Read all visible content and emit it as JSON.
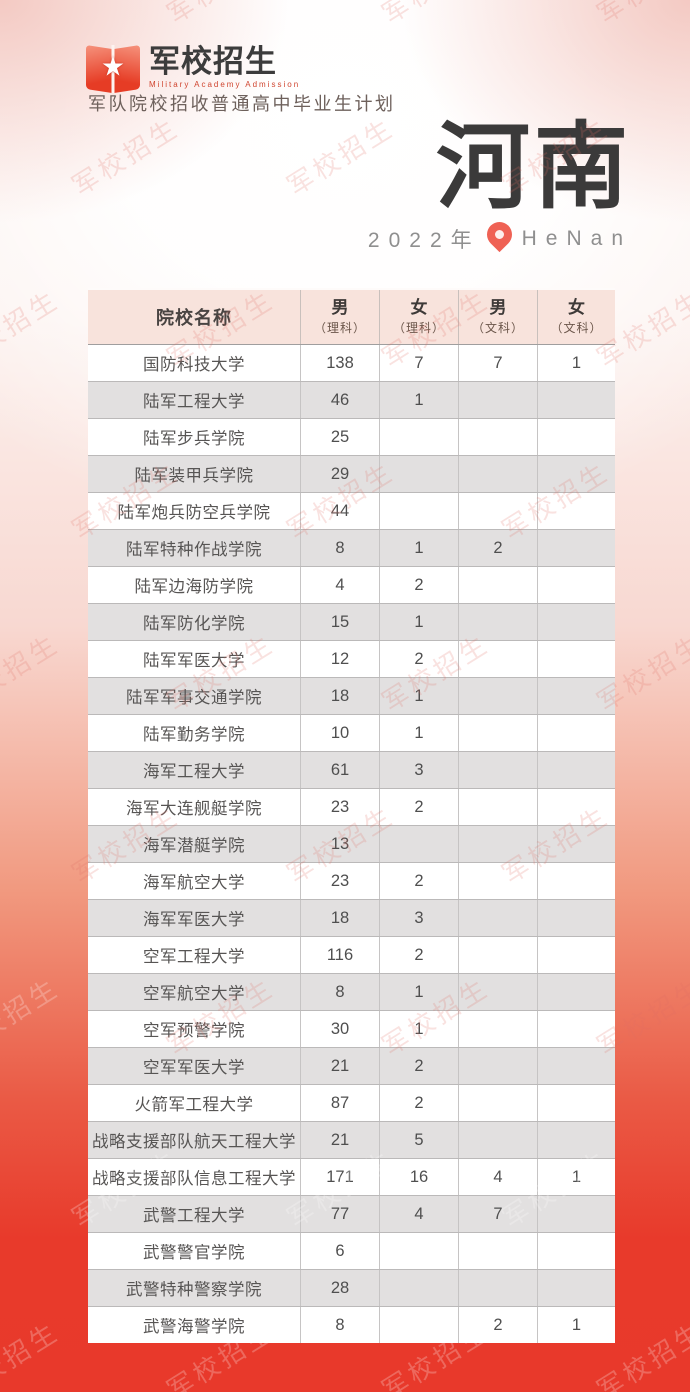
{
  "logo": {
    "title": "军校招生",
    "subtitle": "Military Academy Admission"
  },
  "tagline": "军队院校招收普通高中毕业生计划",
  "title": {
    "province": "河南",
    "year": "2022年",
    "pinyin": "HeNan"
  },
  "watermark_text": "军校招生",
  "colors": {
    "primary_red": "#e8392b",
    "header_pink": "#f8e3dc",
    "row_gray": "#e2e0e0",
    "row_white": "#ffffff",
    "pin_red": "#ef6154"
  },
  "table": {
    "header": {
      "name_label": "院校名称",
      "columns": [
        {
          "label": "男",
          "sub": "（理科）"
        },
        {
          "label": "女",
          "sub": "（理科）"
        },
        {
          "label": "男",
          "sub": "（文科）"
        },
        {
          "label": "女",
          "sub": "（文科）"
        }
      ]
    },
    "rows": [
      {
        "name": "国防科技大学",
        "values": [
          "138",
          "7",
          "7",
          "1"
        ]
      },
      {
        "name": "陆军工程大学",
        "values": [
          "46",
          "1",
          "",
          ""
        ]
      },
      {
        "name": "陆军步兵学院",
        "values": [
          "25",
          "",
          "",
          ""
        ]
      },
      {
        "name": "陆军装甲兵学院",
        "values": [
          "29",
          "",
          "",
          ""
        ]
      },
      {
        "name": "陆军炮兵防空兵学院",
        "values": [
          "44",
          "",
          "",
          ""
        ]
      },
      {
        "name": "陆军特种作战学院",
        "values": [
          "8",
          "1",
          "2",
          ""
        ]
      },
      {
        "name": "陆军边海防学院",
        "values": [
          "4",
          "2",
          "",
          ""
        ]
      },
      {
        "name": "陆军防化学院",
        "values": [
          "15",
          "1",
          "",
          ""
        ]
      },
      {
        "name": "陆军军医大学",
        "values": [
          "12",
          "2",
          "",
          ""
        ]
      },
      {
        "name": "陆军军事交通学院",
        "values": [
          "18",
          "1",
          "",
          ""
        ]
      },
      {
        "name": "陆军勤务学院",
        "values": [
          "10",
          "1",
          "",
          ""
        ]
      },
      {
        "name": "海军工程大学",
        "values": [
          "61",
          "3",
          "",
          ""
        ]
      },
      {
        "name": "海军大连舰艇学院",
        "values": [
          "23",
          "2",
          "",
          ""
        ]
      },
      {
        "name": "海军潜艇学院",
        "values": [
          "13",
          "",
          "",
          ""
        ]
      },
      {
        "name": "海军航空大学",
        "values": [
          "23",
          "2",
          "",
          ""
        ]
      },
      {
        "name": "海军军医大学",
        "values": [
          "18",
          "3",
          "",
          ""
        ]
      },
      {
        "name": "空军工程大学",
        "values": [
          "116",
          "2",
          "",
          ""
        ]
      },
      {
        "name": "空军航空大学",
        "values": [
          "8",
          "1",
          "",
          ""
        ]
      },
      {
        "name": "空军预警学院",
        "values": [
          "30",
          "1",
          "",
          ""
        ]
      },
      {
        "name": "空军军医大学",
        "values": [
          "21",
          "2",
          "",
          ""
        ]
      },
      {
        "name": "火箭军工程大学",
        "values": [
          "87",
          "2",
          "",
          ""
        ]
      },
      {
        "name": "战略支援部队航天工程大学",
        "values": [
          "21",
          "5",
          "",
          ""
        ]
      },
      {
        "name": "战略支援部队信息工程大学",
        "values": [
          "171",
          "16",
          "4",
          "1"
        ]
      },
      {
        "name": "武警工程大学",
        "values": [
          "77",
          "4",
          "7",
          ""
        ]
      },
      {
        "name": "武警警官学院",
        "values": [
          "6",
          "",
          "",
          ""
        ]
      },
      {
        "name": "武警特种警察学院",
        "values": [
          "28",
          "",
          "",
          ""
        ]
      },
      {
        "name": "武警海警学院",
        "values": [
          "8",
          "",
          "2",
          "1"
        ]
      }
    ]
  }
}
